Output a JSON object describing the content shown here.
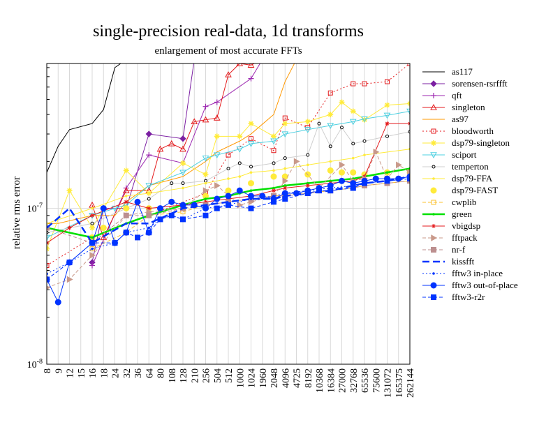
{
  "chart_data": {
    "type": "line",
    "title": "single-precision real-data, 1d transforms",
    "subtitle": "enlargement of most accurate FFTs",
    "xlabel": "",
    "ylabel": "relative rms error",
    "yscale": "log",
    "ylim": [
      1e-08,
      8.5e-07
    ],
    "ytick_labels": [
      "10^-8",
      "10^-7"
    ],
    "grid": "vertical lines at each size; horizontal line at 1e-7",
    "legend_position": "right, outside plot",
    "categories": [
      "8",
      "9",
      "12",
      "15",
      "16",
      "18",
      "24",
      "32",
      "36",
      "64",
      "80",
      "108",
      "128",
      "210",
      "256",
      "504",
      "512",
      "1000",
      "1024",
      "1960",
      "2048",
      "4096",
      "4725",
      "8192",
      "10368",
      "16384",
      "27000",
      "32768",
      "65536",
      "75600",
      "131072",
      "165375",
      "262144"
    ],
    "series": [
      {
        "name": "as117",
        "color": "#000000",
        "dash": "",
        "marker": "none",
        "values": [
          1.7e-07,
          2.5e-07,
          3.2e-07,
          null,
          3.5e-07,
          4.3e-07,
          8e-07,
          9e-07,
          null,
          null,
          null,
          null,
          null,
          null,
          null,
          null,
          null,
          null,
          null,
          null,
          null,
          null,
          null,
          null,
          null,
          null,
          null,
          null,
          null,
          null,
          null,
          null,
          null
        ]
      },
      {
        "name": "sorensen-rsrffft",
        "color": "#7b1fa2",
        "dash": "",
        "marker": "diamond",
        "values": [
          null,
          null,
          null,
          null,
          4.5e-08,
          1e-07,
          null,
          1e-07,
          null,
          3e-07,
          null,
          null,
          2.8e-07,
          9e-07,
          null,
          null,
          null,
          null,
          null,
          null,
          null,
          null,
          null,
          null,
          null,
          null,
          null,
          null,
          null,
          null,
          null,
          null,
          null
        ]
      },
      {
        "name": "qft",
        "color": "#9c27b0",
        "dash": "",
        "marker": "plus",
        "values": [
          null,
          null,
          null,
          null,
          4.3e-08,
          null,
          null,
          1.35e-07,
          null,
          2.2e-07,
          null,
          null,
          1.95e-07,
          null,
          4.5e-07,
          4.8e-07,
          null,
          null,
          6.8e-07,
          9e-07,
          null,
          null,
          null,
          null,
          null,
          null,
          null,
          null,
          null,
          null,
          null,
          null,
          null
        ]
      },
      {
        "name": "singleton",
        "color": "#e41a1c",
        "dash": "",
        "marker": "triangle",
        "values": [
          null,
          null,
          null,
          null,
          1.05e-07,
          6.5e-08,
          null,
          1.3e-07,
          null,
          1.3e-07,
          2.4e-07,
          2.6e-07,
          2.4e-07,
          3.6e-07,
          3.7e-07,
          3.8e-07,
          7.2e-07,
          8.5e-07,
          8.3e-07,
          9e-07,
          null,
          null,
          null,
          null,
          null,
          null,
          null,
          null,
          null,
          null,
          null,
          null,
          null
        ]
      },
      {
        "name": "as97",
        "color": "#ff9800",
        "dash": "",
        "marker": "none",
        "values": [
          8e-08,
          8e-08,
          null,
          null,
          9e-08,
          null,
          9e-08,
          1.1e-07,
          null,
          1.4e-07,
          null,
          null,
          1.6e-07,
          null,
          2e-07,
          2.3e-07,
          null,
          2.7e-07,
          3e-07,
          null,
          4e-07,
          6.5e-07,
          9e-07,
          null,
          null,
          null,
          null,
          null,
          null,
          null,
          null,
          null,
          null
        ]
      },
      {
        "name": "bloodworth",
        "color": "#e41a1c",
        "dash": "2,3",
        "marker": "square-open",
        "values": [
          4.3e-08,
          null,
          null,
          null,
          6.5e-08,
          null,
          null,
          null,
          null,
          9e-08,
          null,
          null,
          null,
          null,
          1.25e-07,
          null,
          2.2e-07,
          null,
          2.8e-07,
          null,
          2.35e-07,
          3.8e-07,
          null,
          3.3e-07,
          null,
          5.5e-07,
          null,
          6.3e-07,
          6.3e-07,
          null,
          6.5e-07,
          null,
          8.5e-07
        ]
      },
      {
        "name": "dsp79-singleton",
        "color": "#ffeb3b",
        "dash": "",
        "marker": "star",
        "values": [
          5.5e-08,
          null,
          1.3e-07,
          null,
          7.5e-08,
          null,
          null,
          1.75e-07,
          null,
          1.25e-07,
          null,
          null,
          1.95e-07,
          null,
          1.65e-07,
          2.9e-07,
          null,
          2.9e-07,
          3.5e-07,
          null,
          2.9e-07,
          3.5e-07,
          null,
          3.6e-07,
          null,
          4e-07,
          4.8e-07,
          4.2e-07,
          3.7e-07,
          null,
          4.6e-07,
          null,
          4.7e-07
        ]
      },
      {
        "name": "sciport",
        "color": "#4dd0e1",
        "dash": "",
        "marker": "triangle-down",
        "values": [
          6.5e-08,
          null,
          null,
          null,
          9e-08,
          null,
          1e-07,
          1.05e-07,
          null,
          1.4e-07,
          null,
          null,
          1.7e-07,
          null,
          2.1e-07,
          2.2e-07,
          null,
          2.4e-07,
          2.6e-07,
          null,
          2.7e-07,
          3e-07,
          null,
          3.2e-07,
          null,
          3.4e-07,
          null,
          3.6e-07,
          3.75e-07,
          null,
          3.95e-07,
          null,
          4.2e-07
        ]
      },
      {
        "name": "temperton",
        "color": "#000000",
        "dash": "",
        "marker": "circle-open",
        "line_color": "#cfcfcf",
        "values": [
          7e-08,
          null,
          null,
          null,
          8e-08,
          null,
          null,
          1e-07,
          null,
          1.15e-07,
          null,
          1.45e-07,
          1.45e-07,
          null,
          1.5e-07,
          null,
          1.8e-07,
          1.95e-07,
          1.85e-07,
          null,
          1.95e-07,
          2.1e-07,
          null,
          2.2e-07,
          3.5e-07,
          2.5e-07,
          3.3e-07,
          2.6e-07,
          2.7e-07,
          null,
          2.9e-07,
          null,
          3.1e-07
        ]
      },
      {
        "name": "dsp79-FFA",
        "color": "#ffeb3b",
        "dash": "",
        "marker": "dot",
        "values": [
          8e-08,
          null,
          null,
          null,
          1e-07,
          null,
          null,
          1.2e-07,
          null,
          1.25e-07,
          null,
          null,
          1.35e-07,
          null,
          1.45e-07,
          null,
          1.55e-07,
          1.6e-07,
          1.7e-07,
          null,
          1.75e-07,
          1.8e-07,
          null,
          1.9e-07,
          null,
          2e-07,
          null,
          2.1e-07,
          2.2e-07,
          null,
          null,
          null,
          2.4e-07
        ]
      },
      {
        "name": "dsp79-FAST",
        "color": "#ffeb3b",
        "dash": "",
        "marker": "circle-filled",
        "line": false,
        "values": [
          null,
          null,
          null,
          null,
          6.5e-08,
          7.5e-08,
          null,
          1e-07,
          null,
          1e-07,
          null,
          null,
          1.05e-07,
          null,
          1.2e-07,
          null,
          1.3e-07,
          null,
          1.45e-07,
          null,
          1.6e-07,
          1.6e-07,
          null,
          1.65e-07,
          null,
          1.75e-07,
          1.7e-07,
          1.7e-07,
          1.65e-07,
          null,
          1.7e-07,
          null,
          1.7e-07
        ]
      },
      {
        "name": "cwplib",
        "color": "#fbc02d",
        "dash": "5,3",
        "marker": "square-open",
        "values": [
          null,
          null,
          null,
          null,
          5.5e-08,
          null,
          null,
          7e-08,
          null,
          9e-08,
          null,
          null,
          9.5e-08,
          null,
          1.05e-07,
          null,
          1.1e-07,
          null,
          1.15e-07,
          null,
          1.2e-07,
          null,
          null,
          1.25e-07,
          null,
          1.3e-07,
          null,
          1.35e-07,
          1.4e-07,
          null,
          1.45e-07,
          null,
          1.5e-07
        ]
      },
      {
        "name": "green",
        "color": "#00e000",
        "dash": "",
        "marker": "dot",
        "line_width": 2.5,
        "values": [
          7.5e-08,
          null,
          null,
          null,
          6.5e-08,
          null,
          null,
          8e-08,
          null,
          9e-08,
          null,
          null,
          1.05e-07,
          null,
          1.15e-07,
          null,
          1.2e-07,
          1.25e-07,
          1.3e-07,
          null,
          1.35e-07,
          1.4e-07,
          null,
          1.45e-07,
          null,
          1.5e-07,
          null,
          1.55e-07,
          1.6e-07,
          null,
          1.7e-07,
          null,
          1.8e-07
        ]
      },
      {
        "name": "vbigdsp",
        "color": "#e41a1c",
        "dash": "",
        "marker": "asterisk",
        "values": [
          6e-08,
          null,
          7.5e-08,
          null,
          9e-08,
          null,
          null,
          1.1e-07,
          null,
          1e-07,
          null,
          null,
          1.05e-07,
          null,
          1.1e-07,
          null,
          1.15e-07,
          null,
          1.2e-07,
          null,
          1.3e-07,
          1.35e-07,
          null,
          1.4e-07,
          null,
          1.45e-07,
          null,
          1.5e-07,
          1.6e-07,
          null,
          3.5e-07,
          null,
          3.5e-07
        ]
      },
      {
        "name": "fftpack",
        "color": "#c9998a",
        "dash": "5,3",
        "marker": "triangle-right",
        "values": [
          3.1e-08,
          null,
          3.5e-08,
          null,
          5e-08,
          null,
          null,
          9e-08,
          null,
          9.5e-08,
          null,
          null,
          1e-07,
          null,
          1.3e-07,
          1.4e-07,
          null,
          1.05e-07,
          1.1e-07,
          null,
          1.2e-07,
          1.5e-07,
          2e-07,
          null,
          1.35e-07,
          null,
          1.9e-07,
          1.5e-07,
          1.55e-07,
          2.3e-07,
          1.55e-07,
          1.9e-07,
          1.7e-07
        ]
      },
      {
        "name": "nr-f",
        "color": "#bc8f8f",
        "dash": "5,3",
        "marker": "square-filled",
        "values": [
          7.5e-08,
          null,
          null,
          null,
          6e-08,
          null,
          null,
          9e-08,
          null,
          9e-08,
          null,
          null,
          1e-07,
          null,
          1.05e-07,
          null,
          1.1e-07,
          null,
          1.15e-07,
          null,
          1.2e-07,
          1.2e-07,
          null,
          1.25e-07,
          null,
          1.3e-07,
          null,
          1.35e-07,
          1.4e-07,
          null,
          1.45e-07,
          null,
          1.5e-07
        ]
      },
      {
        "name": "kissfft",
        "color": "#0033ff",
        "dash": "10,5",
        "marker": "none",
        "line_width": 2.5,
        "values": [
          7.5e-08,
          null,
          1e-07,
          null,
          6e-08,
          null,
          null,
          8e-08,
          null,
          8e-08,
          null,
          null,
          1e-07,
          null,
          1.05e-07,
          null,
          1.1e-07,
          null,
          1.15e-07,
          null,
          1.15e-07,
          1.2e-07,
          null,
          1.25e-07,
          null,
          1.3e-07,
          null,
          1.4e-07,
          1.45e-07,
          null,
          1.5e-07,
          null,
          1.6e-07
        ]
      },
      {
        "name": "fftw3 in-place",
        "color": "#0033ff",
        "dash": "2,3",
        "marker": "dot",
        "values": [
          3.8e-08,
          null,
          4.5e-08,
          null,
          5.5e-08,
          null,
          6e-08,
          7e-08,
          null,
          7.5e-08,
          8.5e-08,
          9e-08,
          8.5e-08,
          null,
          1e-07,
          null,
          1.05e-07,
          null,
          1.15e-07,
          null,
          1.2e-07,
          1.25e-07,
          null,
          1.3e-07,
          null,
          1.35e-07,
          null,
          1.4e-07,
          1.45e-07,
          null,
          1.5e-07,
          null,
          1.6e-07
        ]
      },
      {
        "name": "fftw3 out-of-place",
        "color": "#0033ff",
        "dash": "",
        "marker": "circle-filled",
        "values": [
          3.5e-08,
          2.5e-08,
          4.5e-08,
          null,
          6e-08,
          1e-07,
          6e-08,
          7e-08,
          1.1e-07,
          7e-08,
          1e-07,
          1.1e-07,
          1.05e-07,
          1.05e-07,
          1e-07,
          1.15e-07,
          1.2e-07,
          1.3e-07,
          1.2e-07,
          1.2e-07,
          1.15e-07,
          1.25e-07,
          1.25e-07,
          1.3e-07,
          1.35e-07,
          1.4e-07,
          1.5e-07,
          1.45e-07,
          1.5e-07,
          1.55e-07,
          1.55e-07,
          1.55e-07,
          1.6e-07
        ]
      },
      {
        "name": "fftw3-r2r",
        "color": "#0033ff",
        "dash": "5,3",
        "marker": "square-filled",
        "values": [
          3.5e-08,
          null,
          4.5e-08,
          null,
          6e-08,
          null,
          6e-08,
          7e-08,
          6.5e-08,
          7e-08,
          8.5e-08,
          9e-08,
          8.5e-08,
          null,
          9e-08,
          1e-07,
          1.05e-07,
          null,
          1e-07,
          null,
          1.1e-07,
          1.15e-07,
          null,
          1.25e-07,
          1.3e-07,
          1.3e-07,
          null,
          1.35e-07,
          1.45e-07,
          null,
          1.5e-07,
          null,
          1.55e-07
        ]
      }
    ]
  }
}
